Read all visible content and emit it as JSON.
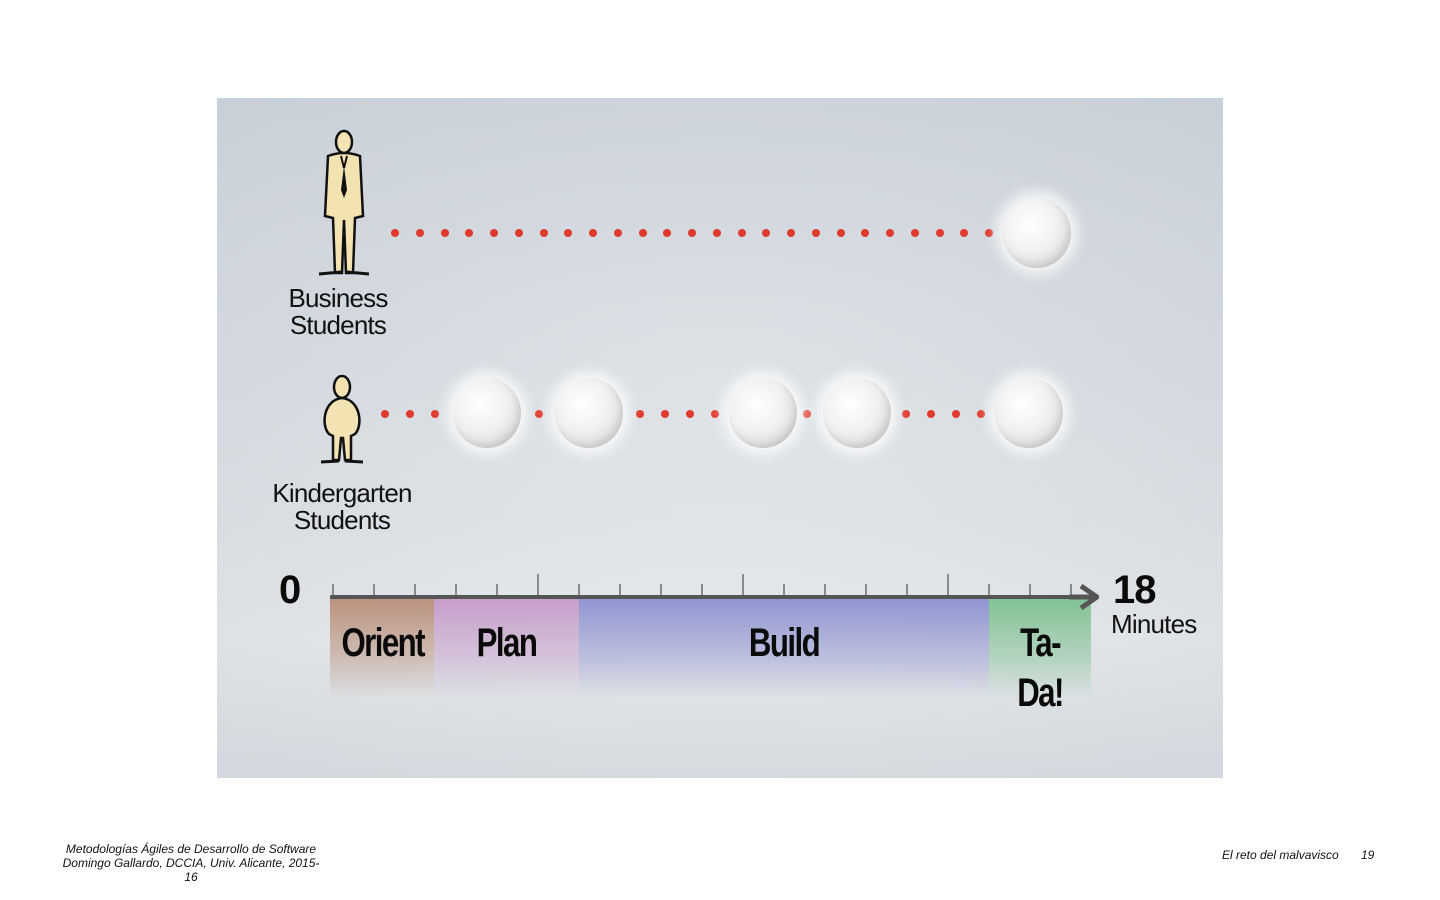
{
  "groups": [
    {
      "id": "business",
      "label_line1": "Business",
      "label_line2": "Students"
    },
    {
      "id": "kindergarten",
      "label_line1": "Kindergarten",
      "label_line2": "Students"
    }
  ],
  "timeline": {
    "start_label": "0",
    "end_label": "18",
    "unit_label": "Minutes",
    "phases": [
      {
        "label": "Orient",
        "color": "#b98e78"
      },
      {
        "label": "Plan",
        "color": "#c49ac8"
      },
      {
        "label": "Build",
        "color": "#8c90cf"
      },
      {
        "label": "Ta-Da!",
        "color": "#7cc08e"
      }
    ]
  },
  "colors": {
    "dot": "#e0392d",
    "axis": "#555555"
  },
  "icons": [
    "business-person-icon",
    "kindergarten-child-icon",
    "marshmallow-icon",
    "arrow-right-icon"
  ],
  "footer": {
    "course_title": "Metodologías Ágiles de Desarrollo de Software",
    "author_line": "Domingo Gallardo, DCCIA, Univ. Alicante, 2015-16",
    "section_title": "El reto del malvavisco",
    "page_number": "19"
  }
}
